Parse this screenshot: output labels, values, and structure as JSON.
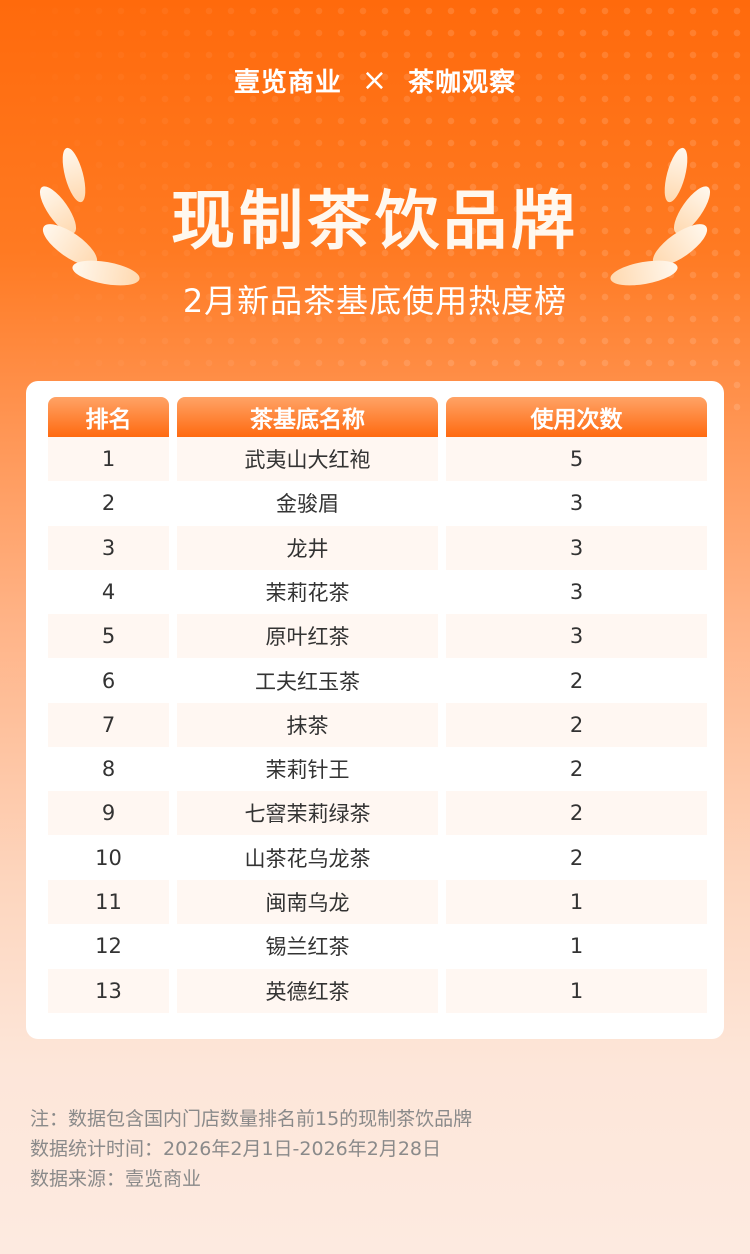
{
  "header": {
    "logo_left": "壹览商业",
    "separator": "×",
    "logo_right": "茶咖观察",
    "title": "现制茶饮品牌",
    "subtitle": "2月新品茶基底使用热度榜"
  },
  "colors": {
    "accent": "#ff6a10",
    "row_tint": "#fff7f2",
    "note_text": "#8a8a8a"
  },
  "table": {
    "columns": [
      "排名",
      "茶基底名称",
      "使用次数"
    ],
    "rows": [
      [
        "1",
        "武夷山大红袍",
        "5"
      ],
      [
        "2",
        "金骏眉",
        "3"
      ],
      [
        "3",
        "龙井",
        "3"
      ],
      [
        "4",
        "茉莉花茶",
        "3"
      ],
      [
        "5",
        "原叶红茶",
        "3"
      ],
      [
        "6",
        "工夫红玉茶",
        "2"
      ],
      [
        "7",
        "抹茶",
        "2"
      ],
      [
        "8",
        "茉莉针王",
        "2"
      ],
      [
        "9",
        "七窨茉莉绿茶",
        "2"
      ],
      [
        "10",
        "山茶花乌龙茶",
        "2"
      ],
      [
        "11",
        "闽南乌龙",
        "1"
      ],
      [
        "12",
        "锡兰红茶",
        "1"
      ],
      [
        "13",
        "英德红茶",
        "1"
      ]
    ]
  },
  "notes": [
    "注：数据包含国内门店数量排名前15的现制茶饮品牌",
    "数据统计时间：2026年2月1日-2026年2月28日",
    "数据来源：壹览商业"
  ]
}
